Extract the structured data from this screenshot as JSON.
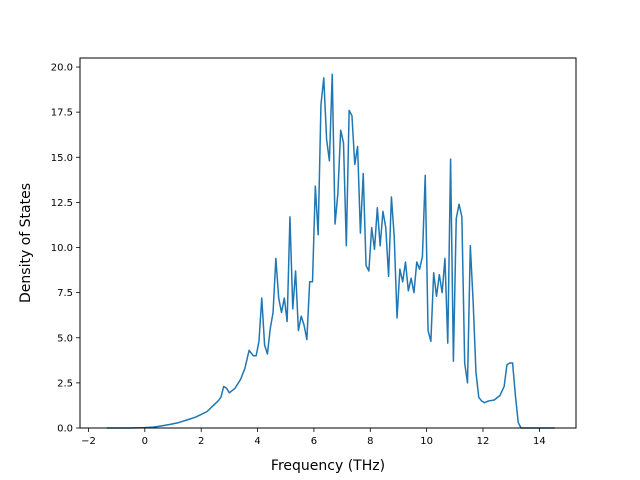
{
  "chart_data": {
    "type": "line",
    "title": "",
    "xlabel": "Frequency (THz)",
    "ylabel": "Density of States",
    "xlim": [
      -2.3,
      15.3
    ],
    "ylim": [
      0,
      20.5
    ],
    "xticks": [
      -2,
      0,
      2,
      4,
      6,
      8,
      10,
      12,
      14
    ],
    "yticks": [
      0.0,
      2.5,
      5.0,
      7.5,
      10.0,
      12.5,
      15.0,
      17.5,
      20.0
    ],
    "xtick_labels": [
      "−2",
      "0",
      "2",
      "4",
      "6",
      "8",
      "10",
      "12",
      "14"
    ],
    "ytick_labels": [
      "0.0",
      "2.5",
      "5.0",
      "7.5",
      "10.0",
      "12.5",
      "15.0",
      "17.5",
      "20.0"
    ],
    "grid": false,
    "line_color": "#1f77b4",
    "series": [
      {
        "x": [
          -1.35,
          -1.0,
          -0.5,
          0.0,
          0.3,
          0.6,
          0.9,
          1.2,
          1.5,
          1.8,
          2.0,
          2.2,
          2.4,
          2.6,
          2.7,
          2.8,
          2.9,
          3.0,
          3.2,
          3.4,
          3.55,
          3.7,
          3.85,
          3.95,
          4.05,
          4.15,
          4.25,
          4.35,
          4.45,
          4.55,
          4.65,
          4.75,
          4.85,
          4.95,
          5.05,
          5.15,
          5.25,
          5.35,
          5.45,
          5.55,
          5.65,
          5.75,
          5.85,
          5.95,
          6.05,
          6.15,
          6.25,
          6.35,
          6.45,
          6.55,
          6.65,
          6.75,
          6.85,
          6.95,
          7.05,
          7.15,
          7.25,
          7.35,
          7.45,
          7.55,
          7.65,
          7.75,
          7.85,
          7.95,
          8.05,
          8.15,
          8.25,
          8.35,
          8.45,
          8.55,
          8.65,
          8.75,
          8.85,
          8.95,
          9.05,
          9.15,
          9.25,
          9.35,
          9.45,
          9.55,
          9.65,
          9.75,
          9.85,
          9.95,
          10.05,
          10.15,
          10.25,
          10.35,
          10.45,
          10.55,
          10.65,
          10.75,
          10.85,
          10.95,
          11.05,
          11.15,
          11.25,
          11.35,
          11.45,
          11.55,
          11.65,
          11.75,
          11.85,
          11.95,
          12.05,
          12.2,
          12.4,
          12.6,
          12.75,
          12.85,
          12.95,
          13.05,
          13.15,
          13.25,
          13.35,
          13.6,
          14.0,
          14.55
        ],
        "y": [
          0.0,
          0.0,
          0.0,
          0.02,
          0.05,
          0.12,
          0.2,
          0.3,
          0.45,
          0.6,
          0.75,
          0.9,
          1.2,
          1.5,
          1.7,
          2.3,
          2.2,
          1.95,
          2.2,
          2.7,
          3.3,
          4.3,
          4.0,
          4.0,
          4.8,
          7.2,
          4.6,
          4.1,
          5.5,
          6.4,
          9.4,
          7.2,
          6.4,
          7.2,
          5.9,
          11.7,
          6.6,
          8.7,
          5.4,
          6.2,
          5.7,
          4.9,
          8.1,
          8.1,
          13.4,
          10.7,
          17.9,
          19.4,
          16.0,
          14.8,
          19.6,
          11.3,
          13.0,
          16.5,
          15.8,
          10.1,
          17.6,
          17.3,
          14.6,
          15.6,
          10.8,
          14.1,
          9.0,
          8.7,
          11.1,
          9.9,
          12.2,
          10.1,
          12.0,
          11.1,
          8.4,
          12.8,
          10.6,
          6.1,
          8.8,
          8.1,
          9.2,
          7.6,
          8.3,
          7.5,
          9.2,
          8.8,
          9.5,
          14.0,
          5.4,
          4.8,
          8.6,
          7.3,
          8.5,
          7.5,
          9.4,
          4.7,
          14.9,
          3.7,
          11.6,
          12.4,
          11.7,
          3.6,
          2.5,
          10.1,
          7.0,
          3.1,
          1.7,
          1.5,
          1.4,
          1.5,
          1.55,
          1.8,
          2.3,
          3.5,
          3.6,
          3.6,
          1.8,
          0.3,
          0.0,
          0.0,
          0.0,
          0.0
        ]
      }
    ]
  }
}
